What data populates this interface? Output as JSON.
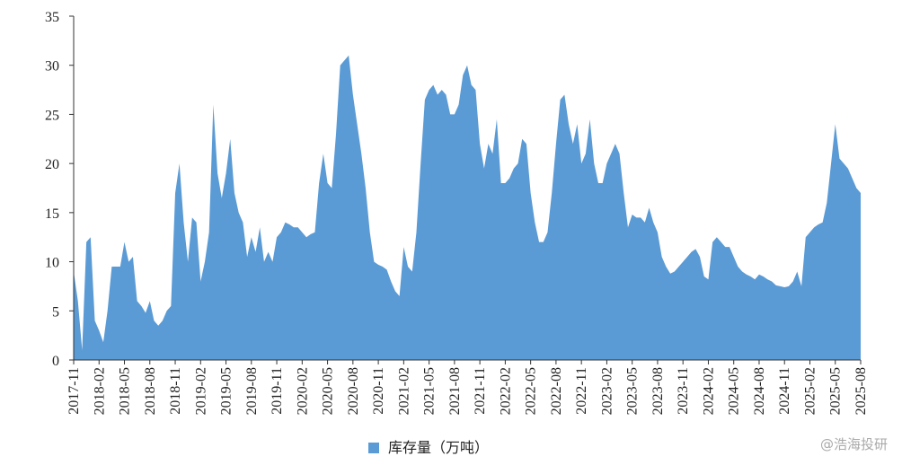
{
  "chart_data": {
    "type": "area",
    "series": [
      {
        "name": "库存量（万吨）",
        "color": "#5b9bd5",
        "values": [
          9,
          6,
          1,
          12,
          12.5,
          4,
          3,
          1.8,
          5,
          9.5,
          9.5,
          9.5,
          12,
          10,
          10.5,
          6,
          5.5,
          4.8,
          6,
          4,
          3.5,
          4,
          5,
          5.5,
          17,
          20,
          14,
          10,
          14.5,
          14,
          8,
          10,
          13,
          26,
          19,
          16.5,
          19,
          22.5,
          17,
          15,
          14,
          10.5,
          12.5,
          11,
          13.5,
          10,
          11,
          10,
          12.5,
          13,
          14,
          13.8,
          13.5,
          13.5,
          13,
          12.5,
          12.8,
          13,
          18,
          21,
          18,
          17.5,
          23,
          30,
          30.5,
          31,
          27,
          24,
          21,
          17.5,
          13,
          10,
          9.7,
          9.5,
          9.2,
          8,
          7,
          6.5,
          11.5,
          9.5,
          9,
          13,
          20,
          26.5,
          27.5,
          28,
          27,
          27.5,
          27,
          25,
          25,
          26,
          29,
          30,
          28,
          27.5,
          22,
          19.5,
          22,
          21,
          24.5,
          18,
          18,
          18.5,
          19.5,
          20,
          22.5,
          22,
          17,
          14,
          12,
          12,
          13,
          17,
          22,
          26.5,
          27,
          24,
          22,
          24,
          20,
          21,
          24.5,
          20,
          18,
          18,
          20,
          21,
          22,
          21,
          17,
          13.5,
          14.8,
          14.5,
          14.5,
          14,
          15.5,
          14,
          13,
          10.5,
          9.5,
          8.8,
          9,
          9.5,
          10,
          10.5,
          11,
          11.3,
          10.5,
          8.5,
          8.2,
          12,
          12.5,
          12,
          11.5,
          11.5,
          10.5,
          9.5,
          9,
          8.7,
          8.5,
          8.2,
          8.7,
          8.5,
          8.2,
          8,
          7.6,
          7.5,
          7.4,
          7.5,
          8,
          9,
          7.5,
          12.5,
          13,
          13.5,
          13.8,
          14,
          16,
          20,
          24,
          20.5,
          20,
          19.5,
          18.5,
          17.5,
          17
        ]
      }
    ],
    "categories": [
      "2017-11",
      null,
      null,
      null,
      null,
      null,
      "2018-02",
      null,
      null,
      null,
      null,
      null,
      "2018-05",
      null,
      null,
      null,
      null,
      null,
      "2018-08",
      null,
      null,
      null,
      null,
      null,
      "2018-11",
      null,
      null,
      null,
      null,
      null,
      "2019-02",
      null,
      null,
      null,
      null,
      null,
      "2019-05",
      null,
      null,
      null,
      null,
      null,
      "2019-08",
      null,
      null,
      null,
      null,
      null,
      "2019-11",
      null,
      null,
      null,
      null,
      null,
      "2020-02",
      null,
      null,
      null,
      null,
      null,
      "2020-05",
      null,
      null,
      null,
      null,
      null,
      "2020-08",
      null,
      null,
      null,
      null,
      null,
      "2020-11",
      null,
      null,
      null,
      null,
      null,
      "2021-02",
      null,
      null,
      null,
      null,
      null,
      "2021-05",
      null,
      null,
      null,
      null,
      null,
      "2021-08",
      null,
      null,
      null,
      null,
      null,
      "2021-11",
      null,
      null,
      null,
      null,
      null,
      "2022-02",
      null,
      null,
      null,
      null,
      null,
      "2022-05",
      null,
      null,
      null,
      null,
      null,
      "2022-08",
      null,
      null,
      null,
      null,
      null,
      "2022-11",
      null,
      null,
      null,
      null,
      null,
      "2023-02",
      null,
      null,
      null,
      null,
      null,
      "2023-05",
      null,
      null,
      null,
      null,
      null,
      "2023-08",
      null,
      null,
      null,
      null,
      null,
      "2023-11",
      null,
      null,
      null,
      null,
      null,
      "2024-02",
      null,
      null,
      null,
      null,
      null,
      "2024-05",
      null,
      null,
      null,
      null,
      null,
      "2024-08",
      null,
      null,
      null,
      null,
      null,
      "2024-11",
      null,
      null,
      null,
      null,
      null,
      "2025-02",
      null,
      null,
      null,
      null,
      null,
      "2025-05",
      null,
      null,
      null,
      null,
      null,
      "2025-08"
    ],
    "ylim": [
      0,
      35
    ],
    "yticks": [
      0,
      5,
      10,
      15,
      20,
      25,
      30,
      35
    ],
    "grid": false,
    "legend": "bottom",
    "watermark": "@浩海投研"
  }
}
